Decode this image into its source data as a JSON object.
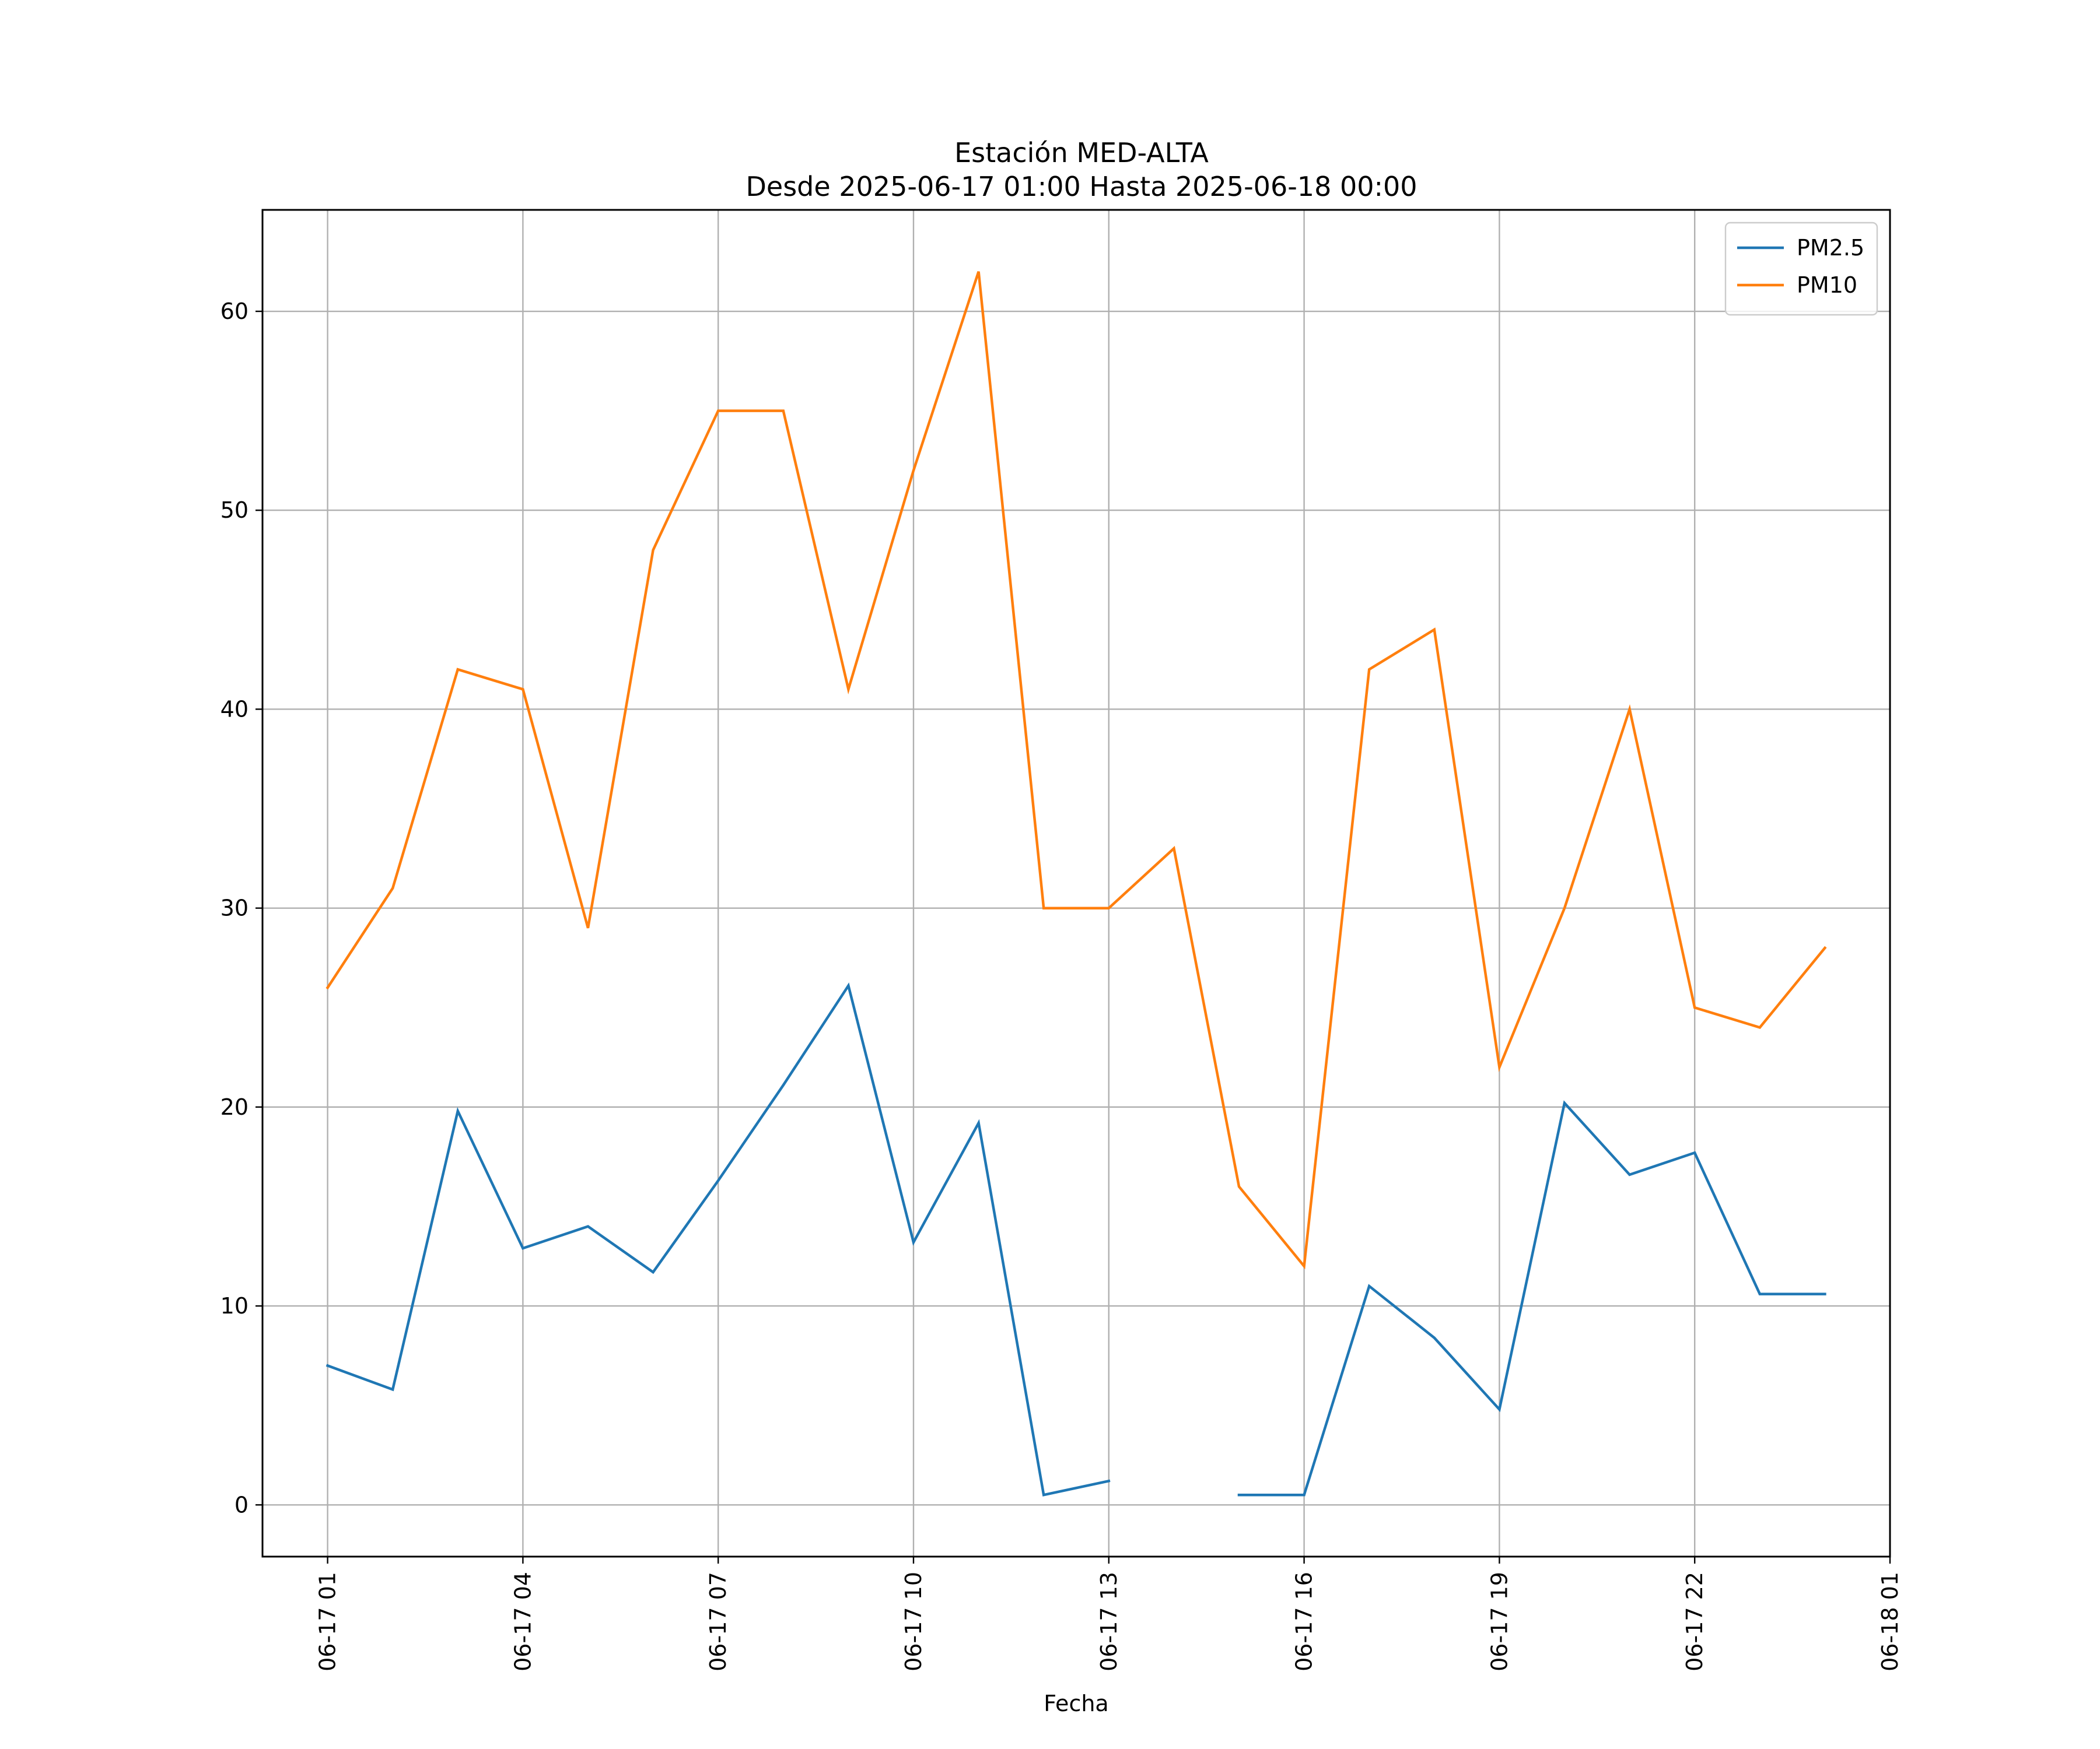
{
  "chart_data": {
    "type": "line",
    "title": "Estación MED-ALTA",
    "subtitle": "Desde 2025-06-17 01:00 Hasta 2025-06-18 00:00",
    "xlabel": "Fecha",
    "ylabel": "",
    "x": [
      "06-17 01:00",
      "06-17 02:00",
      "06-17 03:00",
      "06-17 04:00",
      "06-17 05:00",
      "06-17 06:00",
      "06-17 07:00",
      "06-17 08:00",
      "06-17 09:00",
      "06-17 10:00",
      "06-17 11:00",
      "06-17 12:00",
      "06-17 13:00",
      "06-17 14:00",
      "06-17 15:00",
      "06-17 16:00",
      "06-17 17:00",
      "06-17 18:00",
      "06-17 19:00",
      "06-17 20:00",
      "06-17 21:00",
      "06-17 22:00",
      "06-17 23:00",
      "06-18 00:00"
    ],
    "xticks": [
      "06-17 01",
      "06-17 04",
      "06-17 07",
      "06-17 10",
      "06-17 13",
      "06-17 16",
      "06-17 19",
      "06-17 22",
      "06-18 01"
    ],
    "xlim": [
      "06-17 00:00",
      "06-18 01:00"
    ],
    "yticks": [
      0,
      10,
      20,
      30,
      40,
      50,
      60
    ],
    "ylim": [
      -2.6,
      65.1
    ],
    "grid": true,
    "legend_position": "top-right",
    "series": [
      {
        "name": "PM2.5",
        "color": "#1f77b4",
        "values": [
          7.0,
          5.8,
          19.8,
          12.9,
          14.0,
          11.7,
          16.3,
          21.1,
          26.1,
          13.2,
          19.2,
          0.5,
          1.2,
          null,
          0.5,
          0.5,
          11.0,
          8.4,
          4.8,
          20.2,
          16.6,
          17.7,
          10.6,
          10.6
        ]
      },
      {
        "name": "PM10",
        "color": "#ff7f0e",
        "values": [
          26,
          31,
          42,
          41,
          29,
          48,
          55,
          55,
          41,
          52,
          62,
          30,
          30,
          33,
          16,
          12,
          42,
          44,
          22,
          30,
          40,
          25,
          24,
          28
        ]
      }
    ]
  }
}
